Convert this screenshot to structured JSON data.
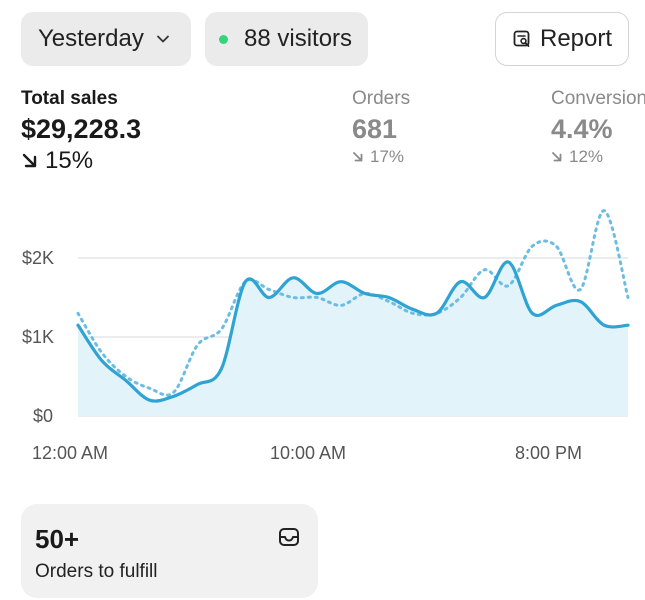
{
  "header": {
    "date_range": "Yesterday",
    "visitors": "88 visitors",
    "report_label": "Report"
  },
  "metrics": {
    "total_sales": {
      "label": "Total sales",
      "value": "$29,228.3",
      "delta": "15%"
    },
    "orders": {
      "label": "Orders",
      "value": "681",
      "delta": "17%"
    },
    "conversion": {
      "label": "Conversion",
      "value": "4.4%",
      "delta": "12%"
    }
  },
  "chart_data": {
    "type": "line",
    "y_ticks": [
      "$2K",
      "$1K",
      "$0"
    ],
    "x_ticks": [
      "12:00 AM",
      "10:00 AM",
      "8:00 PM"
    ],
    "ylim": [
      0,
      2500
    ],
    "series": [
      {
        "style": "solid",
        "values": [
          1150,
          700,
          450,
          200,
          250,
          400,
          600,
          1700,
          1500,
          1750,
          1550,
          1700,
          1550,
          1500,
          1350,
          1300,
          1700,
          1500,
          1950,
          1300,
          1400,
          1450,
          1150,
          1150
        ]
      },
      {
        "style": "dotted",
        "values": [
          1300,
          800,
          500,
          350,
          300,
          900,
          1100,
          1700,
          1600,
          1500,
          1500,
          1400,
          1550,
          1450,
          1300,
          1300,
          1500,
          1850,
          1650,
          2150,
          2150,
          1600,
          2600,
          1500
        ]
      }
    ],
    "colors": {
      "line": "#2ea3d4",
      "fill": "#e3f3fa",
      "grid": "#d9d9d9"
    }
  },
  "fulfill": {
    "count": "50+",
    "label": "Orders to fulfill"
  }
}
